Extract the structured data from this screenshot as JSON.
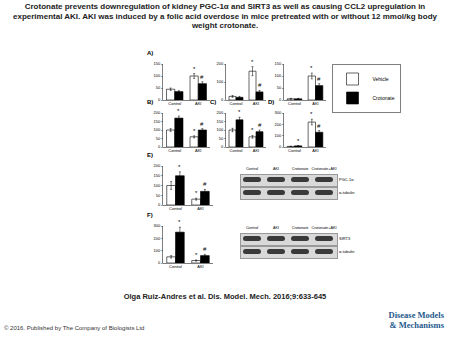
{
  "title": "Crotonate prevents downregulation of kidney PGC-1α and SIRT3 as well as causing CCL2 upregulation in experimental AKI. AKI was induced by a folic acid overdose in mice pretreated with or without 12 mmol/kg body weight crotonate.",
  "citation": "Olga Ruiz-Andres et al. Dis. Model. Mech. 2016;9:633-645",
  "copyright": "© 2016. Published by The Company of Biologists Ltd",
  "logo": [
    "Disease Models",
    "& Mechanisms"
  ],
  "chart_data": [
    {
      "type": "bar",
      "panel": "A)",
      "categories": [
        "Control",
        "AKI"
      ],
      "series": [
        {
          "name": "Vehicle",
          "color": "#ffffff",
          "values": [
            45,
            100
          ],
          "errors": [
            5,
            10
          ]
        },
        {
          "name": "Crotonate",
          "color": "#000000",
          "values": [
            35,
            68
          ],
          "errors": [
            4,
            8
          ]
        }
      ],
      "ylim": [
        0,
        150
      ],
      "yticks": [
        0,
        50,
        100,
        150
      ],
      "legend": "right",
      "annotations": [
        {
          "category": "AKI",
          "series": "Vehicle",
          "text": "*"
        },
        {
          "category": "AKI",
          "series": "Crotonate",
          "text": "#"
        }
      ]
    },
    {
      "type": "bar",
      "categories": [
        "Control",
        "AKI"
      ],
      "series": [
        {
          "name": "Vehicle",
          "color": "#ffffff",
          "values": [
            20,
            160
          ],
          "errors": [
            5,
            25
          ]
        },
        {
          "name": "Crotonate",
          "color": "#000000",
          "values": [
            15,
            45
          ],
          "errors": [
            5,
            8
          ]
        }
      ],
      "ylim": [
        0,
        200
      ],
      "yticks": [
        0,
        100,
        200
      ],
      "annotations": [
        {
          "category": "AKI",
          "series": "Vehicle",
          "text": "*"
        },
        {
          "category": "AKI",
          "series": "Crotonate",
          "text": "#"
        }
      ]
    },
    {
      "type": "bar",
      "categories": [
        "Control",
        "AKI"
      ],
      "series": [
        {
          "name": "Vehicle",
          "color": "#ffffff",
          "values": [
            5,
            100
          ],
          "errors": [
            2,
            12
          ]
        },
        {
          "name": "Crotonate",
          "color": "#000000",
          "values": [
            5,
            60
          ],
          "errors": [
            2,
            8
          ]
        }
      ],
      "ylim": [
        0,
        150
      ],
      "yticks": [
        0,
        50,
        100,
        150
      ],
      "annotations": [
        {
          "category": "AKI",
          "series": "Vehicle",
          "text": "*"
        },
        {
          "category": "AKI",
          "series": "Crotonate",
          "text": "#"
        }
      ]
    },
    {
      "type": "bar",
      "panel": "B)",
      "categories": [
        "Control",
        "AKI"
      ],
      "series": [
        {
          "name": "Vehicle",
          "color": "#ffffff",
          "values": [
            100,
            60
          ],
          "errors": [
            8,
            6
          ]
        },
        {
          "name": "Crotonate",
          "color": "#000000",
          "values": [
            170,
            100
          ],
          "errors": [
            12,
            8
          ]
        }
      ],
      "ylim": [
        0,
        200
      ],
      "yticks": [
        0,
        50,
        100,
        150,
        200
      ],
      "annotations": [
        {
          "category": "Control",
          "series": "Crotonate",
          "text": "*"
        },
        {
          "category": "AKI",
          "series": "Vehicle",
          "text": "*"
        },
        {
          "category": "AKI",
          "series": "Crotonate",
          "text": "#"
        }
      ]
    },
    {
      "type": "bar",
      "panel": "C)",
      "categories": [
        "Control",
        "AKI"
      ],
      "series": [
        {
          "name": "Vehicle",
          "color": "#ffffff",
          "values": [
            100,
            60
          ],
          "errors": [
            10,
            8
          ]
        },
        {
          "name": "Crotonate",
          "color": "#000000",
          "values": [
            160,
            90
          ],
          "errors": [
            15,
            10
          ]
        }
      ],
      "ylim": [
        0,
        200
      ],
      "yticks": [
        0,
        50,
        100,
        150,
        200
      ],
      "annotations": [
        {
          "category": "Control",
          "series": "Crotonate",
          "text": "*"
        },
        {
          "category": "AKI",
          "series": "Vehicle",
          "text": "*"
        },
        {
          "category": "AKI",
          "series": "Crotonate",
          "text": "#"
        }
      ]
    },
    {
      "type": "bar",
      "panel": "D)",
      "categories": [
        "Control",
        "AKI"
      ],
      "series": [
        {
          "name": "Vehicle",
          "color": "#ffffff",
          "values": [
            5,
            220
          ],
          "errors": [
            2,
            25
          ]
        },
        {
          "name": "Crotonate",
          "color": "#000000",
          "values": [
            10,
            130
          ],
          "errors": [
            3,
            15
          ]
        }
      ],
      "ylim": [
        0,
        300
      ],
      "yticks": [
        0,
        100,
        200,
        300
      ],
      "annotations": [
        {
          "category": "Control",
          "series": "Crotonate",
          "text": "*"
        },
        {
          "category": "AKI",
          "series": "Vehicle",
          "text": "*"
        },
        {
          "category": "AKI",
          "series": "Crotonate",
          "text": "#"
        }
      ]
    },
    {
      "type": "bar",
      "panel": "E)",
      "categories": [
        "Control",
        "AKI"
      ],
      "series": [
        {
          "name": "Vehicle",
          "color": "#ffffff",
          "values": [
            100,
            30
          ],
          "errors": [
            20,
            5
          ]
        },
        {
          "name": "Crotonate",
          "color": "#000000",
          "values": [
            150,
            70
          ],
          "errors": [
            20,
            10
          ]
        }
      ],
      "ylim": [
        0,
        200
      ],
      "yticks": [
        0,
        50,
        100,
        150,
        200
      ],
      "annotations": [
        {
          "category": "Control",
          "series": "Crotonate",
          "text": "*"
        },
        {
          "category": "AKI",
          "series": "Vehicle",
          "text": "*"
        },
        {
          "category": "AKI",
          "series": "Crotonate",
          "text": "#"
        }
      ]
    },
    {
      "type": "bar",
      "panel": "F)",
      "categories": [
        "Control",
        "AKI"
      ],
      "series": [
        {
          "name": "Vehicle",
          "color": "#ffffff",
          "values": [
            50,
            20
          ],
          "errors": [
            10,
            5
          ]
        },
        {
          "name": "Crotonate",
          "color": "#000000",
          "values": [
            250,
            60
          ],
          "errors": [
            40,
            10
          ]
        }
      ],
      "ylim": [
        0,
        300
      ],
      "yticks": [
        0,
        100,
        200,
        300
      ],
      "annotations": [
        {
          "category": "Control",
          "series": "Crotonate",
          "text": "*"
        },
        {
          "category": "AKI",
          "series": "Vehicle",
          "text": "*"
        },
        {
          "category": "AKI",
          "series": "Crotonate",
          "text": "#"
        }
      ]
    }
  ],
  "blots": [
    {
      "panel": "E)",
      "lanes": [
        "Control",
        "AKI",
        "Crotonate",
        "Crotonate+AKI"
      ],
      "rows": [
        "PGC-1α",
        "α-tubulin"
      ]
    },
    {
      "panel": "F)",
      "lanes": [
        "Control",
        "AKI",
        "Crotonate",
        "Crotonate+AKI"
      ],
      "rows": [
        "SIRT3",
        "α-tubulin"
      ]
    }
  ]
}
